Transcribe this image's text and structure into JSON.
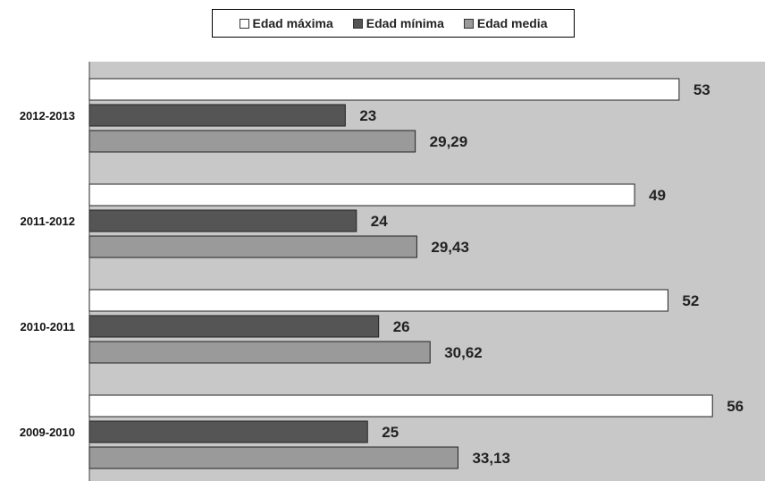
{
  "chart_data": {
    "type": "bar",
    "orientation": "horizontal",
    "categories": [
      "2012-2013",
      "2011-2012",
      "2010-2011",
      "2009-2010"
    ],
    "series": [
      {
        "name": "Edad máxima",
        "color": "#ffffff",
        "values": [
          53,
          49,
          52,
          56
        ],
        "labels": [
          "53",
          "49",
          "52",
          "56"
        ]
      },
      {
        "name": "Edad mínima",
        "color": "#555555",
        "values": [
          23,
          24,
          26,
          25
        ],
        "labels": [
          "23",
          "24",
          "26",
          "25"
        ]
      },
      {
        "name": "Edad media",
        "color": "#9a9a9a",
        "values": [
          29.29,
          29.43,
          30.62,
          33.13
        ],
        "labels": [
          "29,29",
          "29,43",
          "30,62",
          "33,13"
        ]
      }
    ],
    "xlim": [
      0,
      58
    ],
    "plot_background": "#c8c8c8",
    "legend_position": "top",
    "grid": false
  }
}
